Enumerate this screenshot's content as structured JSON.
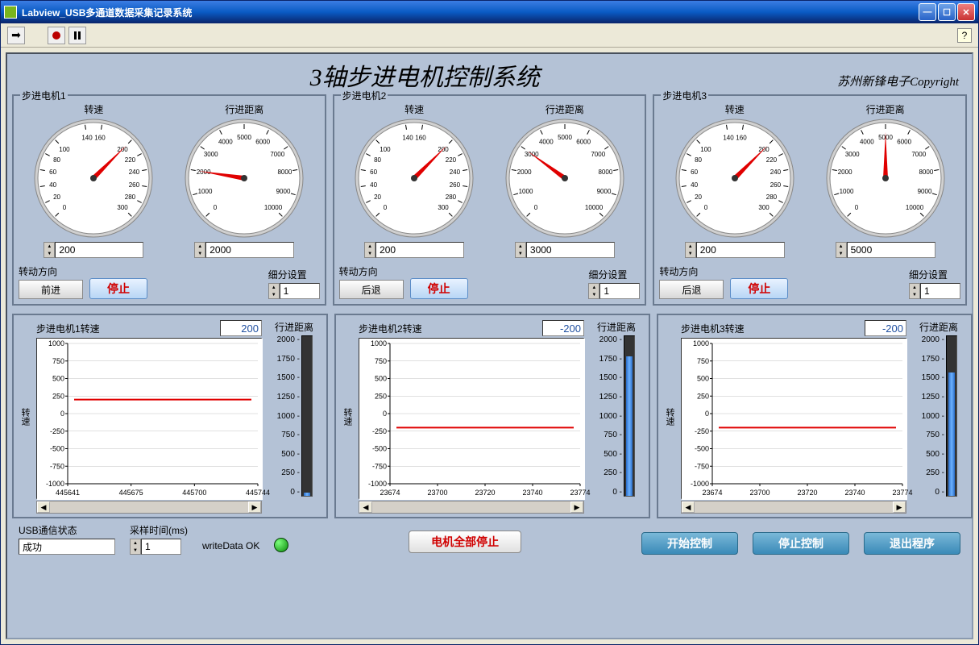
{
  "window": {
    "title": "Labview_USB多通道数据采集记录系统"
  },
  "header": {
    "title": "3轴步进电机控制系统",
    "copyright": "苏州新锋电子Copyright"
  },
  "gauge_speed": {
    "type": "gauge",
    "label": "转速",
    "min": 0,
    "max": 300,
    "ticks": [
      0,
      20,
      40,
      60,
      80,
      100,
      140,
      160,
      200,
      220,
      240,
      260,
      280,
      300
    ],
    "major_labels": [
      "0",
      "20",
      "40",
      "60",
      "80",
      "100",
      "140",
      "160",
      "200",
      "220",
      "240",
      "260",
      "280",
      "300"
    ],
    "start_angle": -225,
    "end_angle": 45,
    "needle_color": "#e00000",
    "face_color": "#ffffff",
    "text_color": "#000000",
    "tick_fontsize": 8
  },
  "gauge_dist": {
    "type": "gauge",
    "label": "行进距离",
    "min": 0,
    "max": 10000,
    "ticks": [
      0,
      1000,
      2000,
      3000,
      4000,
      5000,
      6000,
      7000,
      8000,
      9000,
      10000
    ],
    "start_angle": -225,
    "end_angle": 45,
    "needle_color": "#e00000",
    "face_color": "#ffffff",
    "text_color": "#000000",
    "tick_fontsize": 8
  },
  "motors": [
    {
      "panel_label": "步进电机1",
      "speed_value": 200,
      "speed_input": "200",
      "dist_value": 2000,
      "dist_input": "2000",
      "dir_label": "转动方向",
      "dir_value": "前进",
      "stop_label": "停止",
      "subdiv_label": "细分设置",
      "subdiv_value": "1"
    },
    {
      "panel_label": "步进电机2",
      "speed_value": 200,
      "speed_input": "200",
      "dist_value": 3000,
      "dist_input": "3000",
      "dir_label": "转动方向",
      "dir_value": "后退",
      "stop_label": "停止",
      "subdiv_label": "细分设置",
      "subdiv_value": "1"
    },
    {
      "panel_label": "步进电机3",
      "speed_value": 200,
      "speed_input": "200",
      "dist_value": 5000,
      "dist_input": "5000",
      "dir_label": "转动方向",
      "dir_value": "后退",
      "stop_label": "停止",
      "subdiv_label": "细分设置",
      "subdiv_value": "1"
    }
  ],
  "charts": [
    {
      "title": "步进电机1转速",
      "ylabel": "转速",
      "current_display": "200",
      "side_label": "行进距离",
      "type": "line",
      "line_color": "#e00000",
      "bg_color": "#ffffff",
      "grid_color": "#c0c0c0",
      "ylim": [
        -1000,
        1000
      ],
      "yticks": [
        -1000,
        -750,
        -500,
        -250,
        0,
        250,
        500,
        750,
        1000
      ],
      "xticks": [
        "445641",
        "445675",
        "445700",
        "445744"
      ],
      "line_y": 200,
      "slider": {
        "min": 0,
        "max": 2000,
        "ticks": [
          0,
          250,
          500,
          750,
          1000,
          1250,
          1500,
          1750,
          2000
        ],
        "value": 40,
        "fill_color": "#3a8ae0",
        "track_color": "#222222"
      }
    },
    {
      "title": "步进电机2转速",
      "ylabel": "转速",
      "current_display": "-200",
      "side_label": "行进距离",
      "type": "line",
      "line_color": "#e00000",
      "bg_color": "#ffffff",
      "grid_color": "#c0c0c0",
      "ylim": [
        -1000,
        1000
      ],
      "yticks": [
        -1000,
        -750,
        -500,
        -250,
        0,
        250,
        500,
        750,
        1000
      ],
      "xticks": [
        "23674",
        "23700",
        "23720",
        "23740",
        "23774"
      ],
      "line_y": -200,
      "slider": {
        "min": 0,
        "max": 2000,
        "ticks": [
          0,
          250,
          500,
          750,
          1000,
          1250,
          1500,
          1750,
          2000
        ],
        "value": 1750,
        "fill_color": "#3a8ae0",
        "track_color": "#222222"
      }
    },
    {
      "title": "步进电机3转速",
      "ylabel": "转速",
      "current_display": "-200",
      "side_label": "行进距离",
      "type": "line",
      "line_color": "#e00000",
      "bg_color": "#ffffff",
      "grid_color": "#c0c0c0",
      "ylim": [
        -1000,
        1000
      ],
      "yticks": [
        -1000,
        -750,
        -500,
        -250,
        0,
        250,
        500,
        750,
        1000
      ],
      "xticks": [
        "23674",
        "23700",
        "23720",
        "23740",
        "23774"
      ],
      "line_y": -200,
      "slider": {
        "min": 0,
        "max": 2000,
        "ticks": [
          0,
          250,
          500,
          750,
          1000,
          1250,
          1500,
          1750,
          2000
        ],
        "value": 1550,
        "fill_color": "#3a8ae0",
        "track_color": "#222222"
      }
    }
  ],
  "bottom": {
    "usb_label": "USB通信状态",
    "usb_value": "成功",
    "sample_label": "采样时间(ms)",
    "sample_value": "1",
    "write_ok": "writeData OK",
    "all_stop": "电机全部停止",
    "start_ctrl": "开始控制",
    "stop_ctrl": "停止控制",
    "exit": "退出程序"
  },
  "colors": {
    "panel_bg": "#b4c2d6",
    "panel_border": "#6a7a90"
  }
}
